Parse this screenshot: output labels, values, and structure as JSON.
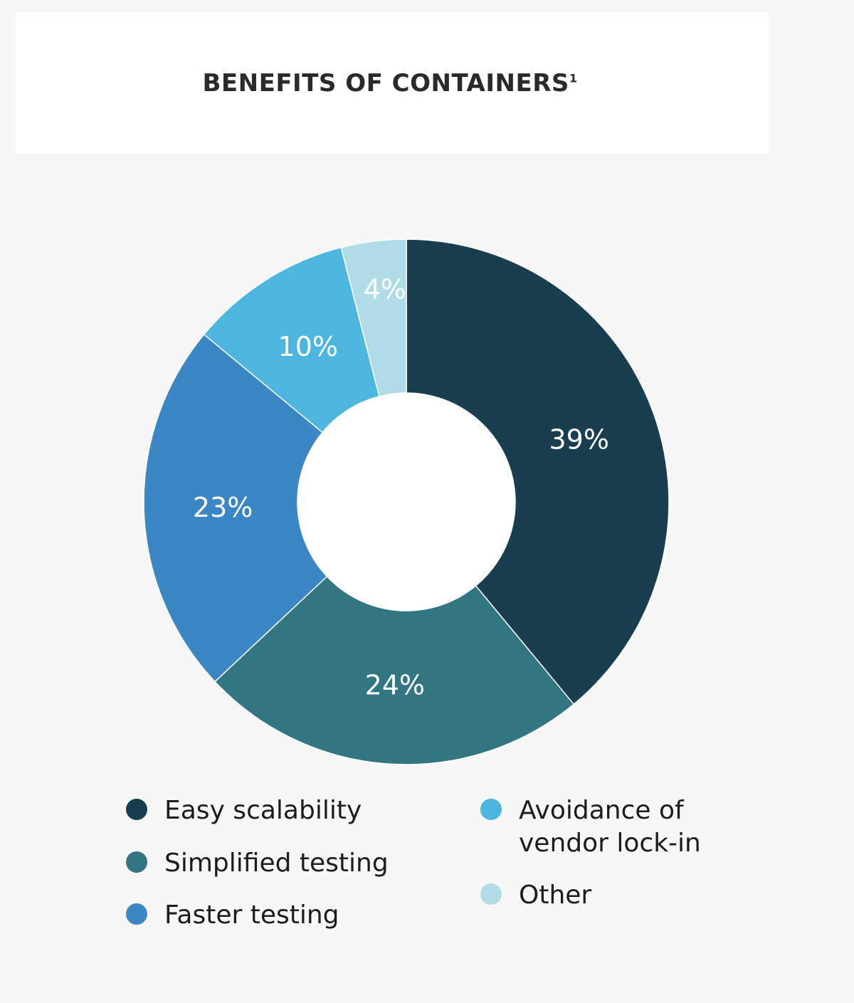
{
  "title_main": "BENEFITS OF CONTAINERS",
  "title_sup": "1",
  "chart_data": {
    "type": "pie",
    "title": "BENEFITS OF CONTAINERS",
    "donut": true,
    "slices": [
      {
        "name": "Easy scalability",
        "value": 39,
        "label": "39%",
        "color": "#193e50"
      },
      {
        "name": "Simplified testing",
        "value": 24,
        "label": "24%",
        "color": "#327682"
      },
      {
        "name": "Faster testing",
        "value": 23,
        "label": "23%",
        "color": "#3b86c4"
      },
      {
        "name": "Avoidance of vendor lock-in",
        "value": 10,
        "label": "10%",
        "color": "#4db6df"
      },
      {
        "name": "Other",
        "value": 4,
        "label": "4%",
        "color": "#b0dce7"
      }
    ],
    "legend": [
      {
        "label": "Easy scalability",
        "color": "#193e50"
      },
      {
        "label": "Simplified testing",
        "color": "#327682"
      },
      {
        "label": "Faster testing",
        "color": "#3b86c4"
      },
      {
        "label": "Avoidance of\nvendor lock-in",
        "color": "#4db6df"
      },
      {
        "label": "Other",
        "color": "#b0dce7"
      }
    ],
    "legend_placement": "bottom"
  }
}
